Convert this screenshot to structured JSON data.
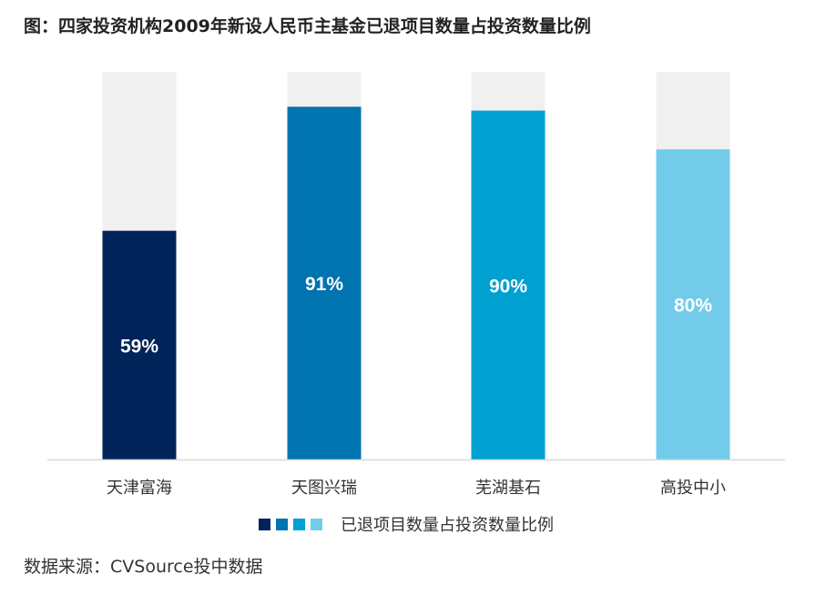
{
  "title": "图：四家投资机构2009年新设人民币主基金已退项目数量占投资数量比例",
  "source": "数据来源：CVSource投中数据",
  "colors": {
    "background_bar": "#f0f0f0",
    "axis": "#d9d9d9",
    "label_text": "#ffffff"
  },
  "legend": {
    "label": "已退项目数量占投资数量比例",
    "swatches": [
      "#00245a",
      "#0074b0",
      "#00a0d1",
      "#73cbea"
    ]
  },
  "chart_data": {
    "type": "bar",
    "categories": [
      "天津富海",
      "天图兴瑞",
      "芜湖基石",
      "高投中小"
    ],
    "series": [
      {
        "name": "已退项目数量占投资数量比例",
        "values": [
          59,
          91,
          90,
          80
        ],
        "labels": [
          "59%",
          "91%",
          "90%",
          "80%"
        ],
        "colors": [
          "#00245a",
          "#0074b0",
          "#00a0d1",
          "#73cbea"
        ]
      }
    ],
    "ylim": [
      0,
      100
    ],
    "background_bars": true,
    "grid": false
  }
}
